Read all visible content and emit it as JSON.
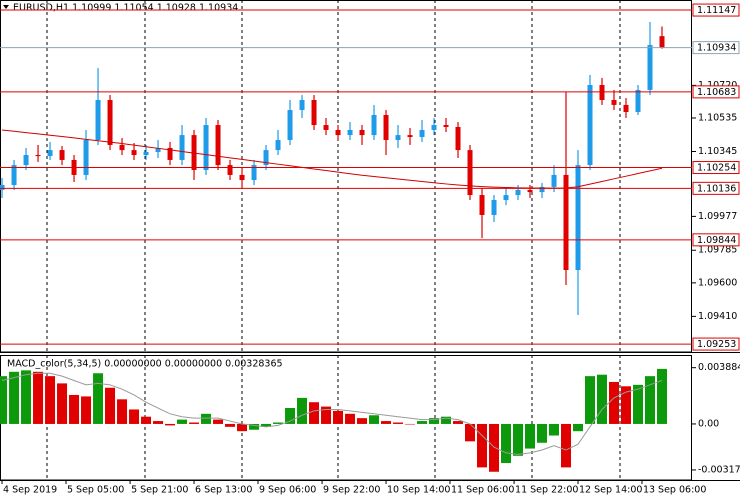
{
  "chart_data": [
    {
      "type": "candlestick",
      "title": "EURUSD,H1  1.10999 1.11054 1.10928 1.10934",
      "ylim": [
        1.09208,
        1.11204
      ],
      "yticks": [
        {
          "value": 1.1072,
          "label": "1.10720"
        },
        1.10535,
        1.10345,
        1.09977,
        1.09785,
        {
          "value": 1.096,
          "label": "1.09600"
        },
        {
          "value": 1.0941,
          "label": "1.09410"
        }
      ],
      "series": [
        {
          "type": "candlestick",
          "up_color": "#1e9be9",
          "down_color": "#e00000",
          "ohlc": [
            [
              1.10127,
              1.10195,
              1.10081,
              1.10155
            ],
            [
              1.10155,
              1.10297,
              1.10127,
              1.10268
            ],
            [
              1.10268,
              1.10365,
              1.1024,
              1.10325
            ],
            [
              1.10325,
              1.10382,
              1.10286,
              1.10319
            ],
            [
              1.10319,
              1.10399,
              1.10297,
              1.10353
            ],
            [
              1.10353,
              1.10376,
              1.10268,
              1.10297
            ],
            [
              1.10297,
              1.10325,
              1.10172,
              1.10212
            ],
            [
              1.10212,
              1.10467,
              1.10183,
              1.1041
            ],
            [
              1.1041,
              1.10818,
              1.10382,
              1.10637
            ],
            [
              1.10637,
              1.10665,
              1.10353,
              1.10382
            ],
            [
              1.10382,
              1.10421,
              1.10325,
              1.10353
            ],
            [
              1.10353,
              1.10393,
              1.10297,
              1.10325
            ],
            [
              1.10325,
              1.10382,
              1.10297,
              1.10342
            ],
            [
              1.10342,
              1.1041,
              1.10308,
              1.10365
            ],
            [
              1.10365,
              1.10399,
              1.10268,
              1.10297
            ],
            [
              1.10297,
              1.10495,
              1.10268,
              1.10438
            ],
            [
              1.10438,
              1.10467,
              1.10183,
              1.1024
            ],
            [
              1.1024,
              1.10535,
              1.10212,
              1.10495
            ],
            [
              1.10495,
              1.10524,
              1.1024,
              1.10268
            ],
            [
              1.10268,
              1.10297,
              1.10183,
              1.10212
            ],
            [
              1.10212,
              1.10251,
              1.10138,
              1.10183
            ],
            [
              1.10183,
              1.10297,
              1.10155,
              1.10268
            ],
            [
              1.10268,
              1.10382,
              1.1024,
              1.10353
            ],
            [
              1.10353,
              1.10467,
              1.10325,
              1.1041
            ],
            [
              1.1041,
              1.10637,
              1.10382,
              1.1058
            ],
            [
              1.1058,
              1.10665,
              1.10535,
              1.10637
            ],
            [
              1.10637,
              1.10665,
              1.10467,
              1.10495
            ],
            [
              1.10495,
              1.10535,
              1.10438,
              1.10467
            ],
            [
              1.10467,
              1.10495,
              1.1041,
              1.10438
            ],
            [
              1.10438,
              1.10512,
              1.1041,
              1.10467
            ],
            [
              1.10467,
              1.10495,
              1.10382,
              1.10438
            ],
            [
              1.10438,
              1.10609,
              1.1041,
              1.10552
            ],
            [
              1.10552,
              1.1058,
              1.10325,
              1.1041
            ],
            [
              1.1041,
              1.10495,
              1.10365,
              1.10438
            ],
            [
              1.10438,
              1.10478,
              1.10382,
              1.10427
            ],
            [
              1.10427,
              1.10524,
              1.10399,
              1.10467
            ],
            [
              1.10467,
              1.10535,
              1.10438,
              1.10495
            ],
            [
              1.10495,
              1.10535,
              1.10455,
              1.10484
            ],
            [
              1.10484,
              1.10512,
              1.10308,
              1.10353
            ],
            [
              1.10353,
              1.10382,
              1.1007,
              1.10098
            ],
            [
              1.10098,
              1.10138,
              1.09854,
              1.09985
            ],
            [
              1.09985,
              1.10098,
              1.09945,
              1.1007
            ],
            [
              1.1007,
              1.10138,
              1.10041,
              1.10098
            ],
            [
              1.10098,
              1.10155,
              1.1007,
              1.10127
            ],
            [
              1.10127,
              1.10155,
              1.10081,
              1.10115
            ],
            [
              1.10115,
              1.10166,
              1.10081,
              1.10144
            ],
            [
              1.10144,
              1.10268,
              1.10115,
              1.10212
            ],
            [
              1.10212,
              1.10682,
              1.09588,
              1.09673
            ],
            [
              1.09673,
              1.10353,
              1.09418,
              1.10268
            ],
            [
              1.10268,
              1.10779,
              1.1024,
              1.10722
            ],
            [
              1.10722,
              1.10762,
              1.10609,
              1.10637
            ],
            [
              1.10637,
              1.10694,
              1.1058,
              1.10609
            ],
            [
              1.10609,
              1.10648,
              1.10535,
              1.10569
            ],
            [
              1.10569,
              1.10722,
              1.10552,
              1.10694
            ],
            [
              1.10694,
              1.11079,
              1.10665,
              1.10949
            ],
            [
              1.10999,
              1.11054,
              1.10928,
              1.10934
            ]
          ]
        },
        {
          "type": "line",
          "color": "#d00000",
          "values": [
            1.10467,
            1.1046,
            1.10452,
            1.10445,
            1.10437,
            1.1043,
            1.10422,
            1.10414,
            1.10406,
            1.10398,
            1.1039,
            1.10381,
            1.10372,
            1.10363,
            1.10354,
            1.10345,
            1.10336,
            1.10327,
            1.10318,
            1.10309,
            1.103,
            1.10291,
            1.10282,
            1.10273,
            1.10264,
            1.10255,
            1.10246,
            1.10237,
            1.10228,
            1.10219,
            1.1021,
            1.10203,
            1.10196,
            1.10189,
            1.10182,
            1.10175,
            1.10168,
            1.10161,
            1.10155,
            1.1015,
            1.10146,
            1.10143,
            1.10141,
            1.10139,
            1.10138,
            1.10137,
            1.10137,
            1.10138,
            1.10145,
            1.1016,
            1.10175,
            1.1019,
            1.10205,
            1.1022,
            1.10235,
            1.1025
          ]
        }
      ],
      "hlines": [
        {
          "value": 1.11147,
          "color": "#e00000"
        },
        {
          "value": 1.10934,
          "color": "#8fa3b5"
        },
        {
          "value": 1.10683,
          "color": "#e00000"
        },
        {
          "value": 1.10254,
          "color": "#e00000"
        },
        {
          "value": 1.10136,
          "color": "#e00000"
        },
        {
          "value": 1.09844,
          "color": "#e00000"
        },
        {
          "value": 1.09253,
          "color": "#e00000"
        }
      ]
    },
    {
      "type": "macd",
      "title": "MACD_color(5,34,5) 0.00000000 0.00000000 0.00328365",
      "ylim": [
        -0.00387,
        0.00476
      ],
      "yticks": [
        {
          "value": 0.003884,
          "label": "0.0038840"
        },
        {
          "value": 0,
          "label": "0.00"
        },
        {
          "value": -0.003175,
          "label": "-0.003175"
        }
      ],
      "xlim": [
        -0.17,
        57.5
      ],
      "xticks": [
        {
          "value": 0,
          "label": "4 Sep 2019"
        },
        {
          "value": 5.33,
          "label": "5 Sep 05:00"
        },
        {
          "value": 10.67,
          "label": "5 Sep 21:00"
        },
        {
          "value": 16,
          "label": "6 Sep 13:00"
        },
        {
          "value": 21.33,
          "label": "9 Sep 06:00"
        },
        {
          "value": 26.67,
          "label": "9 Sep 22:00"
        },
        {
          "value": 32,
          "label": "10 Sep 14:00"
        },
        {
          "value": 37.33,
          "label": "11 Sep 06:00"
        },
        {
          "value": 42.67,
          "label": "11 Sep 22:00"
        },
        {
          "value": 48,
          "label": "12 Sep 14:00"
        },
        {
          "value": 53.33,
          "label": "13 Sep 06:00"
        }
      ],
      "series": [
        {
          "type": "bar",
          "up_color": "#0c9a0c",
          "down_color": "#e00000",
          "values": [
            0.0033,
            0.0036,
            0.0037,
            0.0036,
            0.0033,
            0.0028,
            0.002,
            0.0019,
            0.0035,
            0.0025,
            0.0017,
            0.001,
            0.0005,
            0.0002,
            -0.0001,
            0.0003,
            0.0001,
            0.0007,
            0.0003,
            -0.0002,
            -0.0005,
            -0.0004,
            -0.0002,
            0.0001,
            0.0011,
            0.0018,
            0.0015,
            0.0012,
            0.0009,
            0.0007,
            0.0004,
            0.0006,
            0.0002,
            0.0001,
            0,
            0.0002,
            0.0004,
            0.0005,
            0.0002,
            -0.0012,
            -0.003,
            -0.0033,
            -0.0027,
            -0.0022,
            -0.0017,
            -0.0013,
            -0.0008,
            -0.003,
            -0.0005,
            0.0033,
            0.0034,
            0.0029,
            0.0026,
            0.0027,
            0.0033,
            0.0038
          ]
        },
        {
          "type": "line",
          "color": "#9a9a9a",
          "values": [
            0.003,
            0.0032,
            0.0034,
            0.0035,
            0.0035,
            0.0033,
            0.003,
            0.0027,
            0.0028,
            0.0027,
            0.0024,
            0.002,
            0.0015,
            0.0011,
            0.0007,
            0.0005,
            0.0004,
            0.0004,
            0.0004,
            0.0002,
            0,
            -0.0001,
            -0.0002,
            -0.0001,
            0.0002,
            0.0006,
            0.0009,
            0.001,
            0.001,
            0.0009,
            0.0008,
            0.0007,
            0.0006,
            0.0005,
            0.0004,
            0.0003,
            0.0003,
            0.0004,
            0.0003,
            0,
            -0.0008,
            -0.0016,
            -0.002,
            -0.0021,
            -0.002,
            -0.0018,
            -0.0015,
            -0.0018,
            -0.0014,
            -0.0002,
            0.001,
            0.0018,
            0.0022,
            0.0024,
            0.0027,
            0.003
          ]
        }
      ]
    }
  ]
}
